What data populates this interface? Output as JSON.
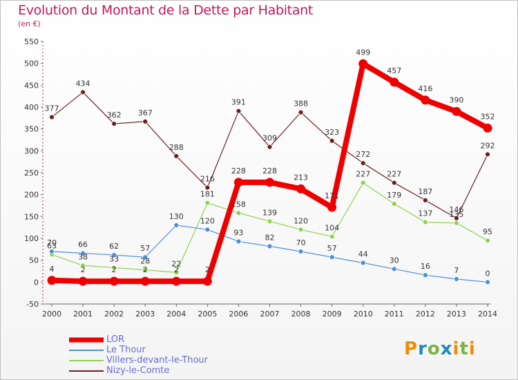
{
  "header": {
    "title": "Evolution du Montant de la Dette par Habitant",
    "subtitle": "(en €)"
  },
  "logo": {
    "letters": [
      "P",
      "r",
      "o",
      "x",
      "i",
      "t",
      "i"
    ],
    "colors": [
      "#f28c00",
      "#1e88c8",
      "#7cb342",
      "#1e88c8",
      "#f28c00",
      "#7cb342",
      "#f28c00"
    ]
  },
  "chart_data": {
    "type": "line",
    "title": "Evolution du Montant de la Dette par Habitant",
    "ylabel": "(en €)",
    "x": [
      "2000",
      "2001",
      "2002",
      "2003",
      "2004",
      "2005",
      "2006",
      "2007",
      "2008",
      "2009",
      "2010",
      "2011",
      "2012",
      "2013",
      "2014"
    ],
    "ylim": [
      -50,
      550
    ],
    "yticks": [
      -50,
      0,
      50,
      100,
      150,
      200,
      250,
      300,
      350,
      400,
      450,
      500,
      550
    ],
    "grid": false,
    "legend_position": "bottom-left",
    "series": [
      {
        "name": "LOR",
        "color": "#ee0000",
        "emphasis": true,
        "values": [
          4,
          2,
          2,
          2,
          2,
          2,
          228,
          228,
          213,
          171,
          499,
          457,
          416,
          390,
          352
        ],
        "labels": [
          "4",
          "2",
          "2",
          "2",
          "2",
          "2",
          "228",
          "228",
          "213",
          "171",
          "499",
          "457",
          "416",
          "390",
          "352"
        ]
      },
      {
        "name": "Le Thour",
        "color": "#4a90d9",
        "values": [
          70,
          66,
          62,
          57,
          130,
          120,
          93,
          82,
          70,
          57,
          44,
          30,
          16,
          7,
          0
        ],
        "labels": [
          "70",
          "66",
          "62",
          "57",
          "130",
          "120",
          "93",
          "82",
          "70",
          "57",
          "44",
          "30",
          "16",
          "7",
          "0"
        ]
      },
      {
        "name": "Villers-devant-le-Thour",
        "color": "#8fd14f",
        "values": [
          63,
          38,
          33,
          28,
          22,
          181,
          158,
          139,
          120,
          104,
          227,
          179,
          137,
          135,
          95
        ],
        "labels": [
          "63",
          "38",
          "33",
          "28",
          "22",
          "181",
          "158",
          "139",
          "120",
          "104",
          "227",
          "179",
          "137",
          "135",
          "95"
        ]
      },
      {
        "name": "Nizy-le-Comte",
        "color": "#6b1f23",
        "values": [
          377,
          434,
          362,
          367,
          288,
          216,
          391,
          309,
          388,
          323,
          272,
          227,
          187,
          146,
          292
        ],
        "labels": [
          "377",
          "434",
          "362",
          "367",
          "288",
          "216",
          "391",
          "309",
          "388",
          "323",
          "272",
          "227",
          "187",
          "146",
          "292"
        ]
      }
    ]
  }
}
